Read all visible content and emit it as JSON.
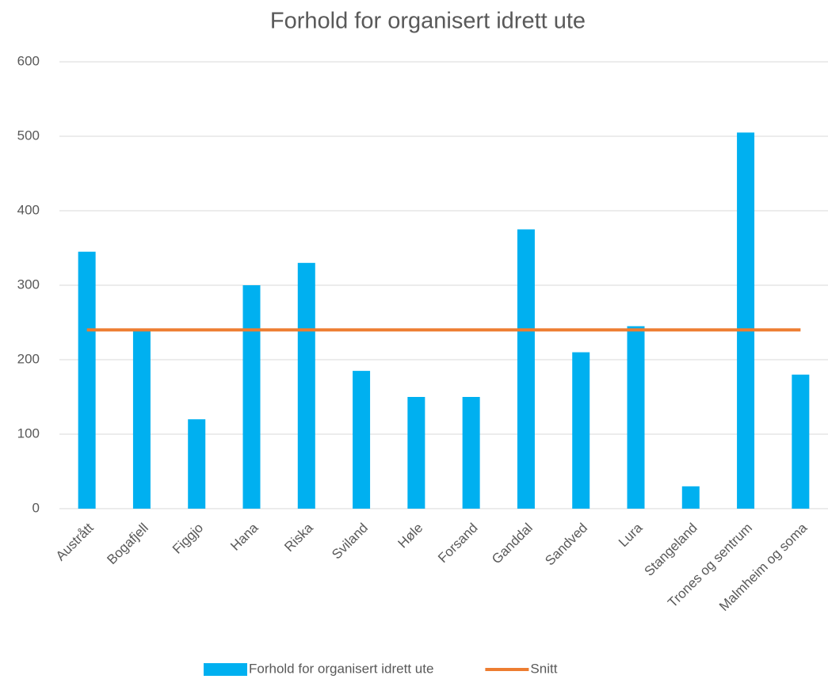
{
  "chart_data": {
    "type": "bar",
    "title": "Forhold for organisert idrett ute",
    "categories": [
      "Austrått",
      "Bogafjell",
      "Figgjo",
      "Hana",
      "Riska",
      "Sviland",
      "Høle",
      "Forsand",
      "Ganddal",
      "Sandved",
      "Lura",
      "Stangeland",
      "Trones og sentrum",
      "Malmheim og soma"
    ],
    "series": [
      {
        "name": "Forhold for organisert idrett ute",
        "type": "bar",
        "color": "#00b0f0",
        "values": [
          345,
          240,
          120,
          300,
          330,
          185,
          150,
          150,
          375,
          210,
          245,
          30,
          505,
          180
        ]
      },
      {
        "name": "Snitt",
        "type": "line",
        "color": "#ed7d31",
        "values": [
          240,
          240,
          240,
          240,
          240,
          240,
          240,
          240,
          240,
          240,
          240,
          240,
          240,
          240
        ]
      }
    ],
    "ylim": [
      0,
      600
    ],
    "yticks": [
      0,
      100,
      200,
      300,
      400,
      500,
      600
    ],
    "grid": true,
    "legend": "bottom"
  }
}
